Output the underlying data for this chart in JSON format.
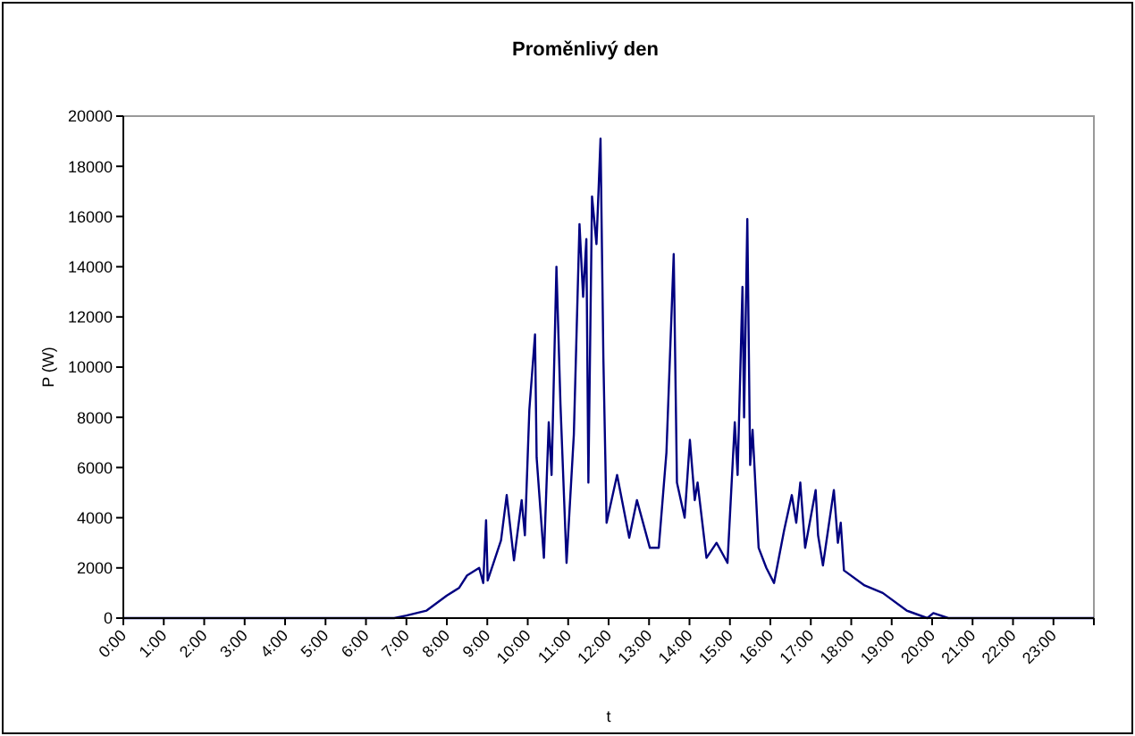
{
  "chart_data": {
    "type": "line",
    "title": "Proměnlivý den",
    "xlabel": "t",
    "ylabel": "P (W)",
    "xlim": [
      0,
      24
    ],
    "xticks": [
      {
        "value": 0,
        "label": "0:00"
      },
      {
        "value": 1,
        "label": "1:00"
      },
      {
        "value": 2,
        "label": "2:00"
      },
      {
        "value": 3,
        "label": "3:00"
      },
      {
        "value": 4,
        "label": "4:00"
      },
      {
        "value": 5,
        "label": "5:00"
      },
      {
        "value": 6,
        "label": "6:00"
      },
      {
        "value": 7,
        "label": "7:00"
      },
      {
        "value": 8,
        "label": "8:00"
      },
      {
        "value": 9,
        "label": "9:00"
      },
      {
        "value": 10,
        "label": "10:00"
      },
      {
        "value": 11,
        "label": "11:00"
      },
      {
        "value": 12,
        "label": "12:00"
      },
      {
        "value": 13,
        "label": "13:00"
      },
      {
        "value": 14,
        "label": "14:00"
      },
      {
        "value": 15,
        "label": "15:00"
      },
      {
        "value": 16,
        "label": "16:00"
      },
      {
        "value": 17,
        "label": "17:00"
      },
      {
        "value": 18,
        "label": "18:00"
      },
      {
        "value": 19,
        "label": "19:00"
      },
      {
        "value": 20,
        "label": "20:00"
      },
      {
        "value": 21,
        "label": "21:00"
      },
      {
        "value": 22,
        "label": "22:00"
      },
      {
        "value": 23,
        "label": "23:00"
      },
      {
        "value": 24,
        "label": null
      }
    ],
    "ylim": [
      0,
      20000
    ],
    "yticks": [
      0,
      2000,
      4000,
      6000,
      8000,
      10000,
      12000,
      14000,
      16000,
      18000,
      20000
    ],
    "grid": false,
    "marker": "none",
    "line_style": "solid",
    "series": [
      {
        "color": "#000080",
        "x": [
          0,
          6.7,
          7.0,
          7.5,
          8.0,
          8.3,
          8.5,
          8.8,
          8.9,
          8.97,
          9.01,
          9.34,
          9.48,
          9.66,
          9.85,
          9.93,
          10.04,
          10.18,
          10.22,
          10.4,
          10.52,
          10.59,
          10.71,
          10.81,
          10.96,
          11.14,
          11.28,
          11.37,
          11.45,
          11.5,
          11.59,
          11.7,
          11.8,
          11.87,
          11.95,
          12.21,
          12.51,
          12.7,
          13.02,
          13.24,
          13.43,
          13.61,
          13.69,
          13.88,
          14.01,
          14.13,
          14.2,
          14.42,
          14.67,
          14.94,
          15.12,
          15.19,
          15.31,
          15.35,
          15.43,
          15.5,
          15.56,
          15.71,
          15.9,
          16.09,
          16.34,
          16.53,
          16.64,
          16.74,
          16.86,
          17.12,
          17.18,
          17.3,
          17.57,
          17.67,
          17.74,
          17.82,
          18.33,
          18.78,
          19.37,
          19.88,
          20.03,
          20.4,
          24
        ],
        "values": [
          0,
          0,
          100,
          300,
          900,
          1200,
          1700,
          2000,
          1400,
          3900,
          1500,
          3100,
          4900,
          2300,
          4700,
          3300,
          8300,
          11300,
          6400,
          2400,
          7800,
          5700,
          14000,
          8500,
          2200,
          7300,
          15700,
          12800,
          15100,
          5400,
          16800,
          14900,
          19100,
          10400,
          3800,
          5700,
          3200,
          4700,
          2800,
          2800,
          6600,
          14500,
          5400,
          4000,
          7100,
          4700,
          5400,
          2400,
          3000,
          2200,
          7800,
          5700,
          13200,
          8000,
          15900,
          6100,
          7500,
          2800,
          2000,
          1400,
          3500,
          4900,
          3800,
          5400,
          2800,
          5100,
          3300,
          2100,
          5100,
          3000,
          3800,
          1900,
          1300,
          1000,
          300,
          0,
          200,
          0,
          0
        ]
      }
    ]
  }
}
